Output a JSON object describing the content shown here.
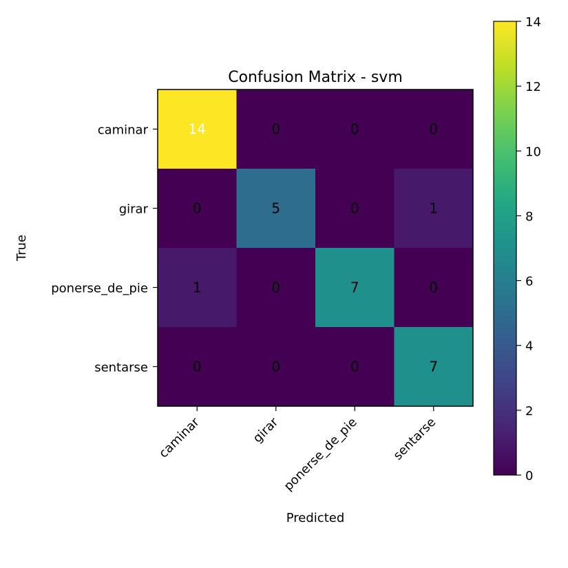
{
  "chart_data": {
    "type": "heatmap",
    "title": "Confusion Matrix - svm",
    "xlabel": "Predicted",
    "ylabel": "True",
    "x_categories": [
      "caminar",
      "girar",
      "ponerse_de_pie",
      "sentarse"
    ],
    "y_categories": [
      "caminar",
      "girar",
      "ponerse_de_pie",
      "sentarse"
    ],
    "matrix": [
      [
        14,
        0,
        0,
        0
      ],
      [
        0,
        5,
        0,
        1
      ],
      [
        1,
        0,
        7,
        0
      ],
      [
        0,
        0,
        0,
        7
      ]
    ],
    "colormap": "viridis",
    "vmin": 0,
    "vmax": 14,
    "colorbar_ticks": [
      0,
      2,
      4,
      6,
      8,
      10,
      12,
      14
    ],
    "grid": false
  }
}
